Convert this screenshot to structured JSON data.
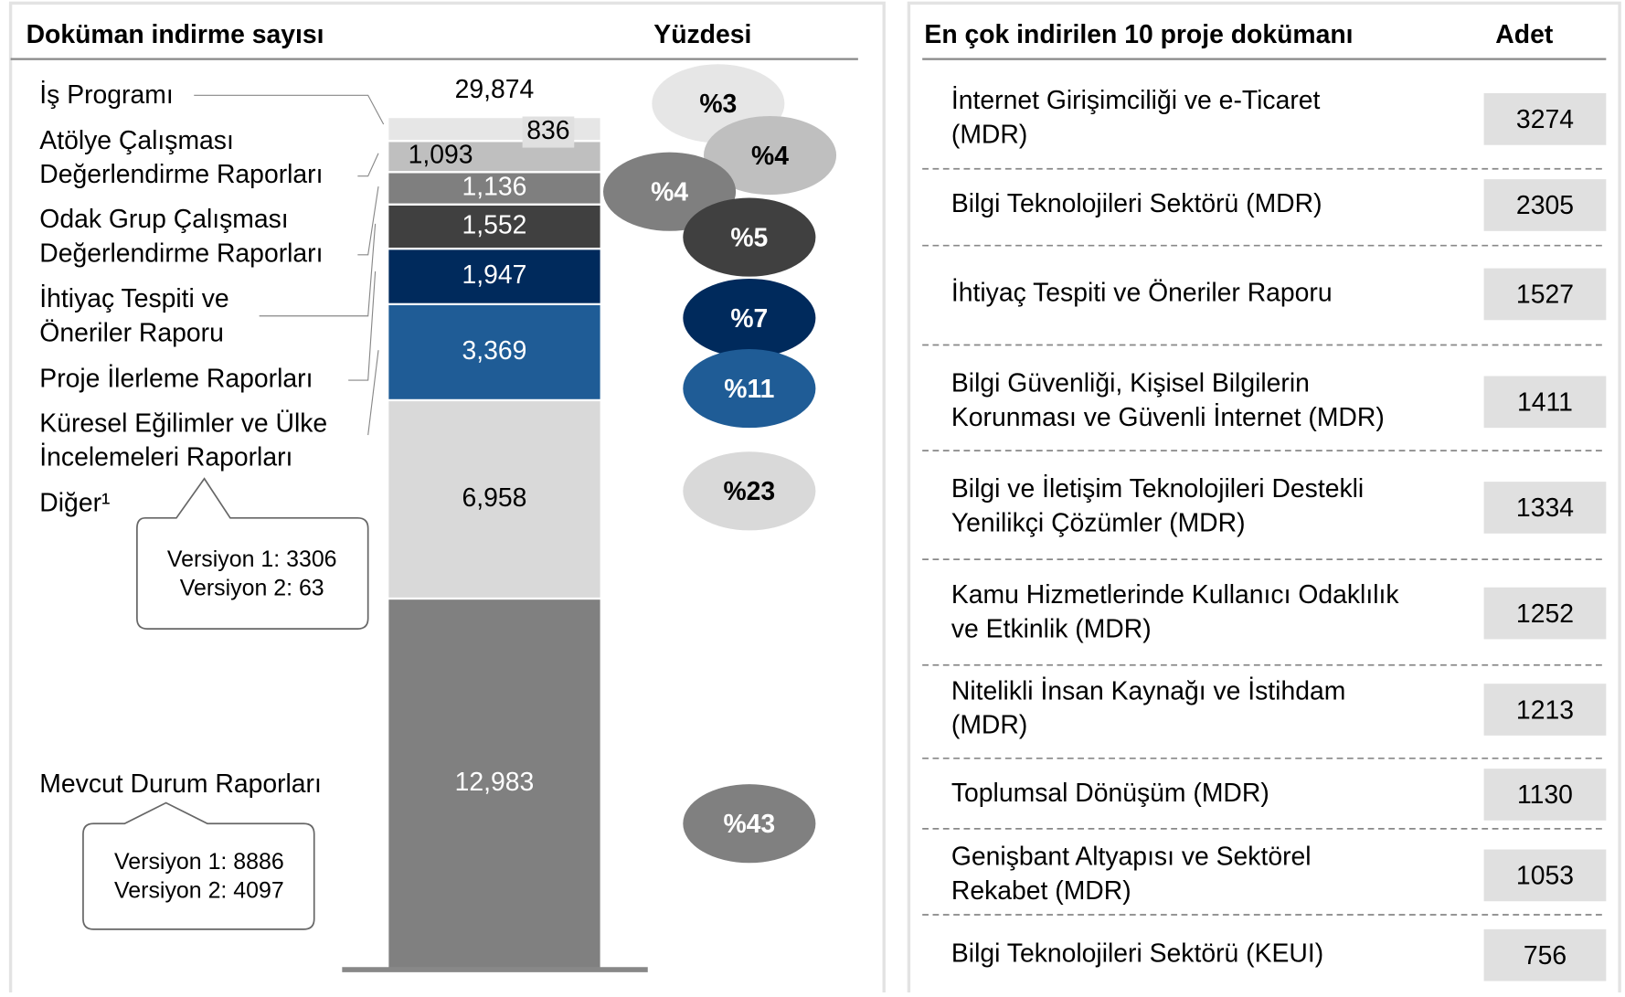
{
  "chart_data": {
    "type": "bar",
    "stacked": true,
    "title": "Doküman indirme sayısı",
    "percent_title": "Yüzdesi",
    "total": 29874,
    "total_label": "29,874",
    "series": [
      {
        "name": [
          "İş Programı"
        ],
        "color": "#e6e6e6",
        "values": [
          836
        ],
        "value_labels": [
          "836"
        ],
        "percent": 3,
        "percent_label": "%3"
      },
      {
        "name": [
          "Atölye Çalışması",
          "Değerlendirme Raporları"
        ],
        "color": "#bfbfbf",
        "values": [
          1093
        ],
        "value_labels": [
          "1,093"
        ],
        "percent": 4,
        "percent_label": "%4"
      },
      {
        "name": [
          "Odak Grup Çalışması",
          "Değerlendirme Raporları"
        ],
        "color": "#7f7f7f",
        "values": [
          1136
        ],
        "value_labels": [
          "1,136"
        ],
        "percent": 4,
        "percent_label": "%4"
      },
      {
        "name": [
          "İhtiyaç Tespiti ve",
          "Öneriler Raporu"
        ],
        "color": "#404040",
        "values": [
          1552
        ],
        "value_labels": [
          "1,552"
        ],
        "percent": 5,
        "percent_label": "%5"
      },
      {
        "name": [
          "Proje İlerleme Raporları"
        ],
        "color": "#002a5c",
        "values": [
          1947
        ],
        "value_labels": [
          "1,947"
        ],
        "percent": 7,
        "percent_label": "%7"
      },
      {
        "name": [
          "Küresel Eğilimler ve Ülke",
          "İncelemeleri Raporları"
        ],
        "color": "#1f5c96",
        "values": [
          3369
        ],
        "value_labels": [
          "3,369"
        ],
        "percent": 11,
        "percent_label": "%11"
      },
      {
        "name": [
          "Diğer¹"
        ],
        "color": "#d9d9d9",
        "values": [
          6958
        ],
        "value_labels": [
          "6,958"
        ],
        "percent": 23,
        "percent_label": "%23"
      },
      {
        "name": [
          "Mevcut Durum Raporları"
        ],
        "color": "#808080",
        "values": [
          12983
        ],
        "value_labels": [
          "12,983"
        ],
        "percent": 43,
        "percent_label": "%43"
      }
    ],
    "annotations": [
      {
        "lines": [
          "Versiyon 1: 3306",
          "Versiyon 2: 63"
        ]
      },
      {
        "lines": [
          "Versiyon 1: 8886",
          "Versiyon 2: 4097"
        ]
      }
    ]
  },
  "table": {
    "title": "En çok indirilen 10 proje dokümanı",
    "header": "Adet",
    "rows": [
      {
        "name": [
          "İnternet Girişimciliği ve e-Ticaret",
          "(MDR)"
        ],
        "count": 3274
      },
      {
        "name": [
          "Bilgi Teknolojileri Sektörü (MDR)"
        ],
        "count": 2305
      },
      {
        "name": [
          "İhtiyaç Tespiti ve Öneriler Raporu"
        ],
        "count": 1527
      },
      {
        "name": [
          "Bilgi Güvenliği, Kişisel Bilgilerin",
          "Korunması ve Güvenli İnternet (MDR)"
        ],
        "count": 1411
      },
      {
        "name": [
          "Bilgi ve İletişim Teknolojileri Destekli",
          "Yenilikçi Çözümler (MDR)"
        ],
        "count": 1334
      },
      {
        "name": [
          "Kamu Hizmetlerinde Kullanıcı Odaklılık",
          "ve Etkinlik (MDR)"
        ],
        "count": 1252
      },
      {
        "name": [
          "Nitelikli İnsan Kaynağı ve İstihdam",
          "(MDR)"
        ],
        "count": 1213
      },
      {
        "name": [
          "Toplumsal Dönüşüm (MDR)"
        ],
        "count": 1130
      },
      {
        "name": [
          "Genişbant Altyapısı ve Sektörel",
          "Rekabet (MDR)"
        ],
        "count": 1053
      },
      {
        "name": [
          "Bilgi Teknolojileri Sektörü (KEUI)"
        ],
        "count": 756
      }
    ]
  }
}
